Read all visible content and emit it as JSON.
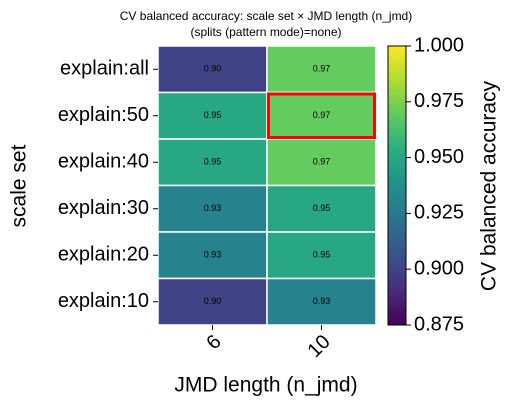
{
  "chart_data": {
    "type": "heatmap",
    "title": "CV balanced accuracy: scale set × JMD length (n_jmd)",
    "subtitle": "(splits (pattern mode)=none)",
    "x_label": "JMD length (n_jmd)",
    "y_label": "scale set",
    "x_categories": [
      "6",
      "10"
    ],
    "y_categories": [
      "explain:all",
      "explain:50",
      "explain:40",
      "explain:30",
      "explain:20",
      "explain:10"
    ],
    "values": [
      [
        0.9,
        0.97
      ],
      [
        0.95,
        0.97
      ],
      [
        0.95,
        0.97
      ],
      [
        0.93,
        0.95
      ],
      [
        0.93,
        0.95
      ],
      [
        0.9,
        0.93
      ]
    ],
    "value_labels": [
      [
        "0.90",
        "0.97"
      ],
      [
        "0.95",
        "0.97"
      ],
      [
        "0.95",
        "0.97"
      ],
      [
        "0.93",
        "0.95"
      ],
      [
        "0.93",
        "0.95"
      ],
      [
        "0.90",
        "0.93"
      ]
    ],
    "colormap": "viridis",
    "colorbar": {
      "label": "CV balanced accuracy",
      "lim": [
        0.875,
        1.0
      ],
      "ticks": [
        0.875,
        {
          "value": 0.9,
          "label": "0.900"
        },
        0.925,
        {
          "value": 0.95,
          "label": "0.950"
        },
        0.975,
        {
          "value": 1.0,
          "label": "1.000"
        }
      ]
    }
  }
}
